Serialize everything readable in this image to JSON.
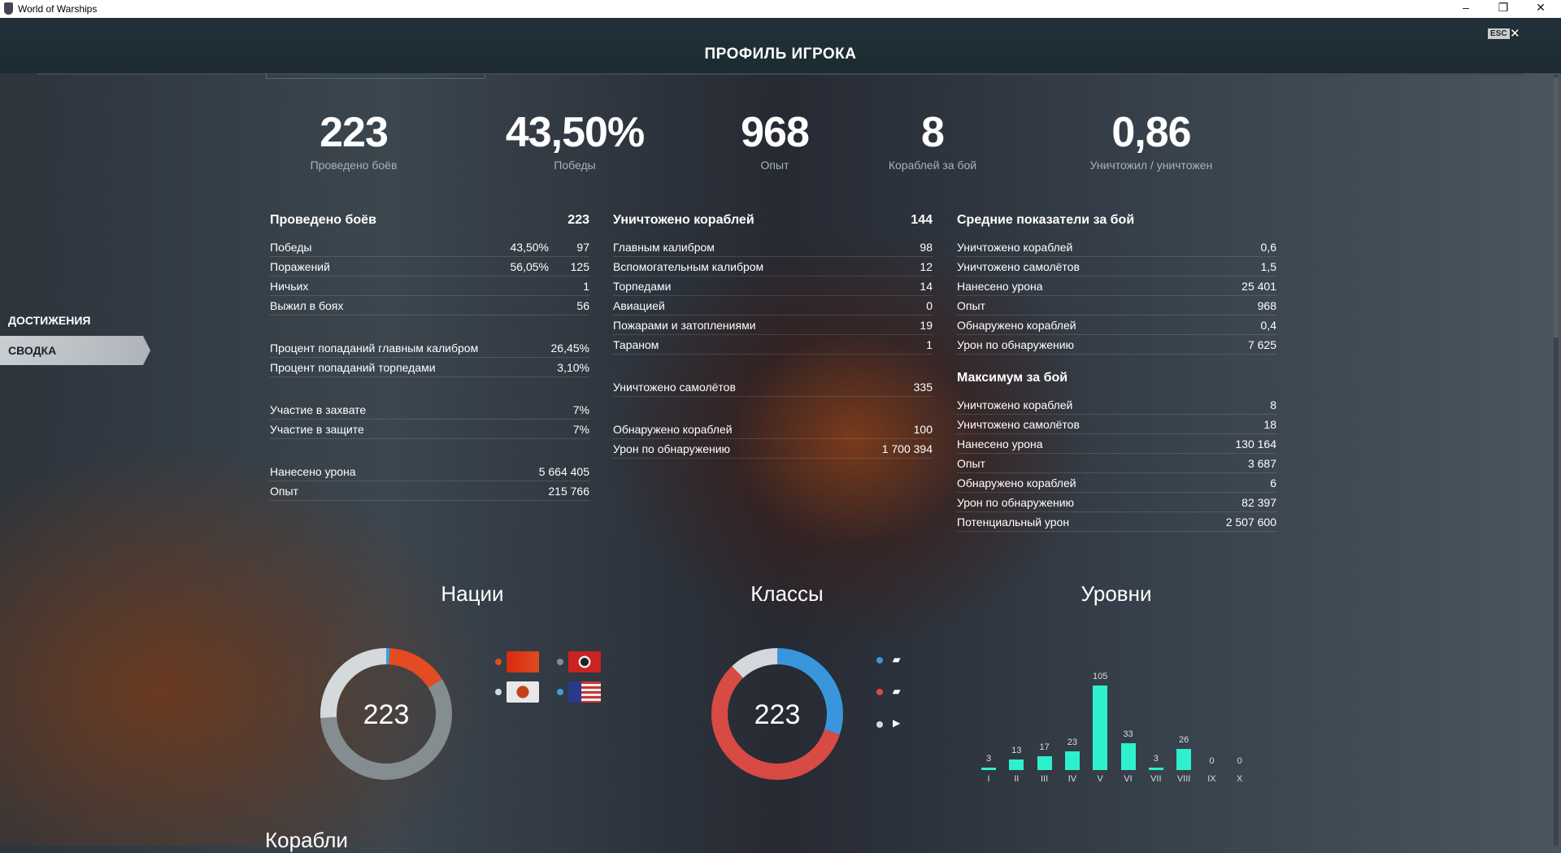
{
  "window": {
    "title": "World of Warships",
    "minimize": "–",
    "restore": "❐",
    "close": "✕"
  },
  "header": {
    "title": "ПРОФИЛЬ ИГРОКА",
    "esc": "ESC",
    "close": "✕"
  },
  "sidebar": [
    {
      "label": "ДОСТИЖЕНИЯ"
    },
    {
      "label": "СВОДКА"
    }
  ],
  "summary": [
    {
      "value": "223",
      "label": "Проведено боёв"
    },
    {
      "value": "43,50%",
      "label": "Победы"
    },
    {
      "value": "968",
      "label": "Опыт"
    },
    {
      "value": "8",
      "label": "Кораблей за бой"
    },
    {
      "value": "0,86",
      "label": "Уничтожил / уничтожен"
    }
  ],
  "col1": {
    "title": "Проведено боёв",
    "total": "223",
    "groups": [
      [
        {
          "label": "Победы",
          "pct": "43,50%",
          "value": "97"
        },
        {
          "label": "Поражений",
          "pct": "56,05%",
          "value": "125"
        },
        {
          "label": "Ничьих",
          "value": "1"
        },
        {
          "label": "Выжил в боях",
          "value": "56"
        }
      ],
      [
        {
          "label": "Процент попаданий главным калибром",
          "value": "26,45%"
        },
        {
          "label": "Процент попаданий торпедами",
          "value": "3,10%"
        }
      ],
      [
        {
          "label": "Участие в захвате",
          "value": "7%"
        },
        {
          "label": "Участие в защите",
          "value": "7%"
        }
      ],
      [
        {
          "label": "Нанесено урона",
          "value": "5 664 405"
        },
        {
          "label": "Опыт",
          "value": "215 766"
        }
      ]
    ]
  },
  "col2": {
    "title": "Уничтожено кораблей",
    "total": "144",
    "groups": [
      [
        {
          "label": "Главным калибром",
          "value": "98"
        },
        {
          "label": "Вспомогательным калибром",
          "value": "12"
        },
        {
          "label": "Торпедами",
          "value": "14"
        },
        {
          "label": "Авиацией",
          "value": "0"
        },
        {
          "label": "Пожарами и затоплениями",
          "value": "19"
        },
        {
          "label": "Тараном",
          "value": "1"
        }
      ],
      [
        {
          "label": "Уничтожено самолётов",
          "value": "335"
        }
      ],
      [
        {
          "label": "Обнаружено кораблей",
          "value": "100"
        },
        {
          "label": "Урон по обнаружению",
          "value": "1 700 394"
        }
      ]
    ]
  },
  "col3": {
    "title": "Средние показатели за бой",
    "rows": [
      {
        "label": "Уничтожено кораблей",
        "value": "0,6"
      },
      {
        "label": "Уничтожено самолётов",
        "value": "1,5"
      },
      {
        "label": "Нанесено урона",
        "value": "25 401"
      },
      {
        "label": "Опыт",
        "value": "968"
      },
      {
        "label": "Обнаружено кораблей",
        "value": "0,4"
      },
      {
        "label": "Урон по обнаружению",
        "value": "7 625"
      }
    ],
    "title2": "Максимум за бой",
    "rows2": [
      {
        "label": "Уничтожено кораблей",
        "value": "8"
      },
      {
        "label": "Уничтожено самолётов",
        "value": "18"
      },
      {
        "label": "Нанесено урона",
        "value": "130 164"
      },
      {
        "label": "Опыт",
        "value": "3 687"
      },
      {
        "label": "Обнаружено кораблей",
        "value": "6"
      },
      {
        "label": "Урон по обнаружению",
        "value": "82 397"
      },
      {
        "label": "Потенциальный урон",
        "value": "2 507 600"
      }
    ]
  },
  "sections": {
    "nations": "Нации",
    "classes": "Классы",
    "tiers": "Уровни",
    "ships": "Корабли"
  },
  "chart_data": [
    {
      "type": "pie",
      "title": "Нации",
      "center": "223",
      "slices": [
        {
          "name": "USA",
          "value": 2,
          "color": "#3aa0dc"
        },
        {
          "name": "USSR",
          "value": 34,
          "color": "#e34c22"
        },
        {
          "name": "Germany",
          "value": 129,
          "color": "#848d8f"
        },
        {
          "name": "Japan",
          "value": 58,
          "color": "#d4dadc"
        }
      ]
    },
    {
      "type": "pie",
      "title": "Классы",
      "center": "223",
      "slices": [
        {
          "name": "destroyer",
          "value": 67,
          "color": "#3a96dc"
        },
        {
          "name": "cruiser",
          "value": 129,
          "color": "#d84a44"
        },
        {
          "name": "battleship",
          "value": 27,
          "color": "#d4d8dc"
        }
      ]
    },
    {
      "type": "bar",
      "title": "Уровни",
      "categories": [
        "I",
        "II",
        "III",
        "IV",
        "V",
        "VI",
        "VII",
        "VIII",
        "IX",
        "X"
      ],
      "values": [
        3,
        13,
        17,
        23,
        105,
        33,
        3,
        26,
        0,
        0
      ]
    }
  ]
}
